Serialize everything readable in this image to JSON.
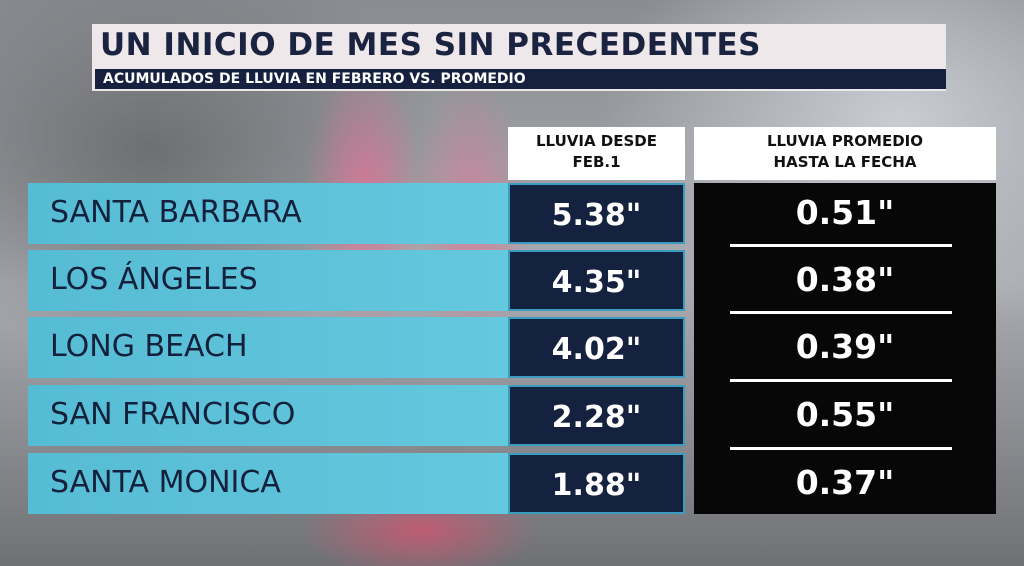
{
  "title": "UN INICIO DE MES SIN PRECEDENTES",
  "subtitle": "ACUMULADOS DE LLUVIA EN FEBRERO VS. PROMEDIO",
  "headers": [
    "LLUVIA DESDE\nFEB.1",
    "LLUVIA PROMEDIO\nHASTA LA FECHA"
  ],
  "rows": [
    {
      "city": "SANTA BARBARA",
      "since_feb1": "5.38\"",
      "average": "0.51\""
    },
    {
      "city": "LOS ÁNGELES",
      "since_feb1": "4.35\"",
      "average": "0.38\""
    },
    {
      "city": "LONG BEACH",
      "since_feb1": "4.02\"",
      "average": "0.39\""
    },
    {
      "city": "SAN FRANCISCO",
      "since_feb1": "2.28\"",
      "average": "0.55\""
    },
    {
      "city": "SANTA MONICA",
      "since_feb1": "1.88\"",
      "average": "0.37\""
    }
  ],
  "colors": {
    "navy": "#14213f",
    "cyan": "#5ec3da",
    "black": "#070707"
  }
}
